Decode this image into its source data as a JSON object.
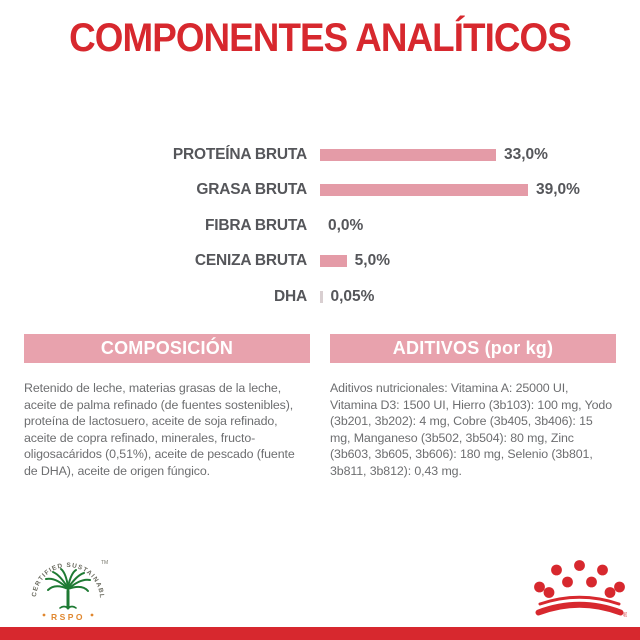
{
  "title": "COMPONENTES ANALÍTICOS",
  "colors": {
    "brand_red": "#d7282e",
    "bar_pink": "#e49ba7",
    "band_pink": "#e8a2ad",
    "label_gray": "#55565a",
    "body_gray": "#6d6e70",
    "rspo_green": "#1e7a33",
    "rspo_orange": "#e0872f"
  },
  "chart_data": {
    "type": "bar",
    "orientation": "horizontal",
    "title": "",
    "xlabel": "",
    "ylabel": "",
    "xlim": [
      0,
      39
    ],
    "grid": false,
    "legend": false,
    "categories": [
      "PROTEÍNA BRUTA",
      "GRASA BRUTA",
      "FIBRA BRUTA",
      "CENIZA BRUTA",
      "DHA"
    ],
    "values": [
      33.0,
      39.0,
      0.0,
      5.0,
      0.05
    ],
    "value_labels": [
      "33,0%",
      "39,0%",
      "0,0%",
      "5,0%",
      "0,05%"
    ],
    "bar_colors": [
      "#e49ba7",
      "#e49ba7",
      "#e49ba7",
      "#e49ba7",
      "#d9cfd1"
    ]
  },
  "sections": {
    "composicion": {
      "header": "COMPOSICIÓN",
      "body": "Retenido de leche, materias grasas de la leche, aceite de palma refinado (de fuentes sostenibles), proteína de lactosuero, aceite de soja refinado, aceite de copra refinado, minerales, fructo-oligosacáridos (0,51%), aceite de pescado (fuente de DHA), aceite de origen fúngico."
    },
    "aditivos": {
      "header": "ADITIVOS (por kg)",
      "body": "Aditivos nutricionales: Vitamina A: 25000 UI, Vitamina D3: 1500 UI, Hierro (3b103): 100 mg, Yodo (3b201, 3b202): 4 mg, Cobre (3b405, 3b406): 15 mg, Manganeso (3b502, 3b504): 80 mg, Zinc (3b603, 3b605, 3b606): 180 mg, Selenio (3b801, 3b811, 3b812): 0,43 mg."
    }
  },
  "footer": {
    "rspo": {
      "circle_text": "CERTIFIED SUSTAINABLE PALM OIL",
      "trademark": "TM",
      "label": "RSPO"
    },
    "brand": {
      "registered": "®"
    }
  }
}
